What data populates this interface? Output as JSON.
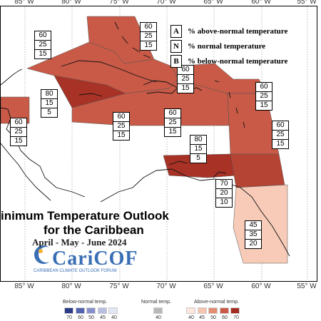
{
  "map": {
    "lon_labels_top": [
      "85° W",
      "80° W",
      "75° W",
      "70° W",
      "65° W",
      "60° W",
      "55° W"
    ],
    "lon_labels_bottom": [
      "85° W",
      "80° W",
      "75° W",
      "70° W",
      "65° W",
      "60° W",
      "55° W"
    ],
    "regions": [
      {
        "id": "bahamas",
        "above": "60",
        "normal": "25",
        "below": "15",
        "color": "#c85a47"
      },
      {
        "id": "northwest-caribbean",
        "above": "60",
        "normal": "25",
        "below": "15",
        "color": "#c85a47"
      },
      {
        "id": "turks-caicos",
        "above": "60",
        "normal": "25",
        "below": "15",
        "color": "#c85a47"
      },
      {
        "id": "leewards-north",
        "above": "60",
        "normal": "25",
        "below": "15",
        "color": "#c85a47"
      },
      {
        "id": "cuba-jamaica",
        "above": "80",
        "normal": "15",
        "below": "5",
        "color": "#a83226"
      },
      {
        "id": "belize",
        "above": "60",
        "normal": "25",
        "below": "15",
        "color": "#c85a47"
      },
      {
        "id": "central-caribbean",
        "above": "60",
        "normal": "25",
        "below": "15",
        "color": "#c85a47"
      },
      {
        "id": "hispaniola",
        "above": "60",
        "normal": "25",
        "below": "15",
        "color": "#c85a47"
      },
      {
        "id": "windwards",
        "above": "60",
        "normal": "25",
        "below": "15",
        "color": "#c85a47"
      },
      {
        "id": "abc-islands",
        "above": "80",
        "normal": "15",
        "below": "5",
        "color": "#a83226"
      },
      {
        "id": "trinidad",
        "above": "70",
        "normal": "20",
        "below": "10",
        "color": "#b64434"
      },
      {
        "id": "guianas",
        "above": "45",
        "normal": "35",
        "below": "20",
        "color": "#f7cbb8"
      }
    ]
  },
  "key": {
    "rows": [
      {
        "letter": "A",
        "text": "% above-normal temperature"
      },
      {
        "letter": "N",
        "text": "% normal temperature"
      },
      {
        "letter": "B",
        "text": "% below-normal temperature"
      }
    ]
  },
  "title": {
    "line1": "inimum Temperature Outlook",
    "line2": "for the Caribbean",
    "period": "April - May - June 2024"
  },
  "logo": {
    "name": "CariCOF",
    "tagline": "CARIBBEAN CLIMATE OUTLOOK FORUM"
  },
  "colorbar": {
    "below_label": "Below-normal temp.",
    "normal_label": "Normal temp.",
    "above_label": "Above-normal temp.",
    "below_ticks": [
      "70",
      "60",
      "50",
      "45",
      "40"
    ],
    "normal_ticks": [
      "40"
    ],
    "above_ticks": [
      "40",
      "45",
      "50",
      "60",
      "70"
    ],
    "below_colors": [
      "#2c3a87",
      "#5363b0",
      "#8690cc",
      "#b9bfe3",
      "#e2e5f4"
    ],
    "normal_color": "#b8b8b8",
    "above_colors": [
      "#fde6dc",
      "#f7c4b0",
      "#e58c73",
      "#c85a47",
      "#a42b22"
    ]
  }
}
